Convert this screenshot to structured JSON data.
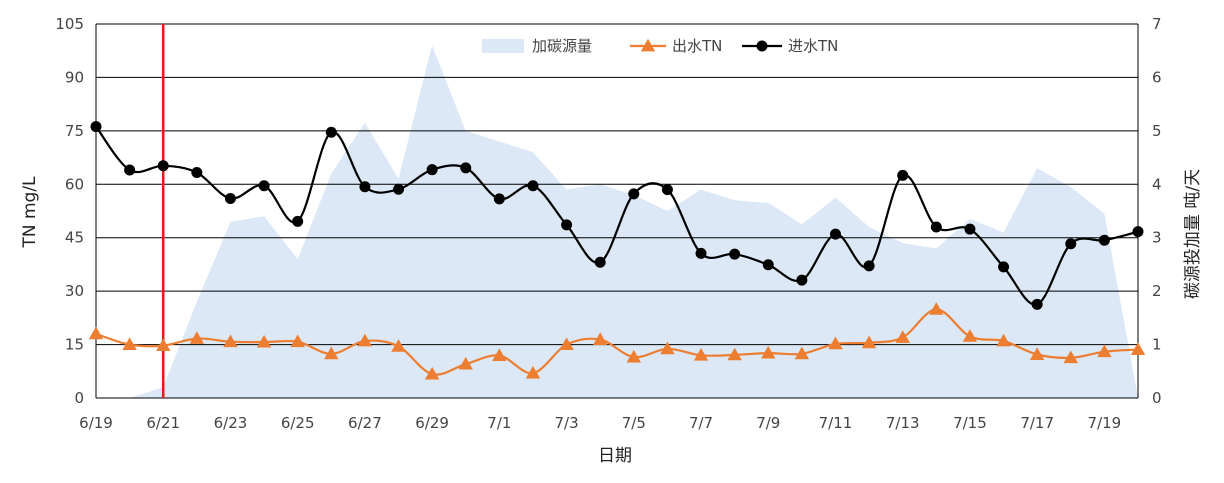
{
  "chart_data": {
    "type": "line",
    "x": [
      "6/19",
      "6/20",
      "6/21",
      "6/22",
      "6/23",
      "6/24",
      "6/25",
      "6/26",
      "6/27",
      "6/28",
      "6/29",
      "6/30",
      "7/1",
      "7/2",
      "7/3",
      "7/4",
      "7/5",
      "7/6",
      "7/7",
      "7/8",
      "7/9",
      "7/10",
      "7/11",
      "7/12",
      "7/13",
      "7/14",
      "7/15",
      "7/16",
      "7/17",
      "7/18",
      "7/19",
      "7/20"
    ],
    "x_tick_labels": [
      "6/19",
      "6/21",
      "6/23",
      "6/25",
      "6/27",
      "6/29",
      "7/1",
      "7/3",
      "7/5",
      "7/7",
      "7/9",
      "7/11",
      "7/13",
      "7/15",
      "7/17",
      "7/19"
    ],
    "xlabel": "日期",
    "ylabel": "TN mg/L",
    "y2label": "碳源投加量 吨/天",
    "ylim": [
      0,
      105
    ],
    "y_ticks": [
      0,
      15,
      30,
      45,
      60,
      75,
      90,
      105
    ],
    "y2lim": [
      0,
      7
    ],
    "y2_ticks": [
      0,
      1,
      2,
      3,
      4,
      5,
      6,
      7
    ],
    "grid": "horizontal",
    "legend_position": "top-center",
    "marker_line": {
      "x": "6/21",
      "color": "#e8191b"
    },
    "series": [
      {
        "name": "加碳源量",
        "kind": "area",
        "axis": "right",
        "color": "#dce8f5",
        "values": [
          0,
          0,
          0.2,
          1.8,
          3.3,
          3.4,
          2.6,
          4.2,
          5.15,
          4.1,
          6.6,
          5.0,
          4.8,
          4.6,
          3.9,
          4.0,
          3.8,
          3.5,
          3.9,
          3.7,
          3.65,
          3.25,
          3.75,
          3.2,
          2.9,
          2.8,
          3.35,
          3.1,
          4.3,
          3.95,
          3.45,
          0
        ]
      },
      {
        "name": "出水TN",
        "kind": "line",
        "axis": "left",
        "color": "#ed7d31",
        "marker": "triangle",
        "values": [
          18.0,
          15.0,
          14.7,
          16.7,
          15.8,
          15.7,
          15.8,
          12.4,
          16.0,
          14.5,
          6.7,
          9.5,
          11.9,
          7.0,
          15.0,
          16.4,
          11.5,
          13.8,
          12.0,
          12.1,
          12.6,
          12.4,
          15.2,
          15.5,
          17.0,
          24.9,
          17.3,
          16.0,
          12.2,
          11.3,
          13.0,
          13.6
        ]
      },
      {
        "name": "进水TN",
        "kind": "line",
        "axis": "left",
        "color": "#000000",
        "marker": "circle",
        "values": [
          76.2,
          64.0,
          65.2,
          63.3,
          56.0,
          59.6,
          49.6,
          74.6,
          59.3,
          58.6,
          64.1,
          64.6,
          55.9,
          59.6,
          48.6,
          38.1,
          57.3,
          58.5,
          40.6,
          40.4,
          37.4,
          33.1,
          46.0,
          37.1,
          62.5,
          48.0,
          47.4,
          36.8,
          26.3,
          43.3,
          44.3,
          46.7
        ]
      }
    ]
  }
}
